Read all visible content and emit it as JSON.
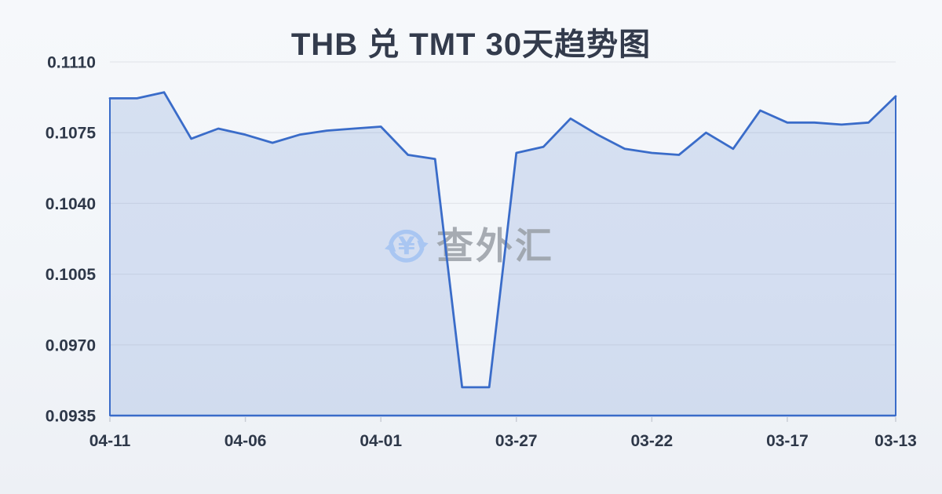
{
  "title": "THB 兑 TMT 30天趋势图",
  "watermark": {
    "text": "查外汇",
    "icon": "currency-refresh-icon"
  },
  "colors": {
    "background_top": "#f6f8fb",
    "background_bottom": "#edf0f5",
    "title_text": "#333b4c",
    "axis_label_text": "#2e3849",
    "watermark_text": "#999fa6",
    "watermark_icon": "#a9c6f2"
  },
  "chart_data": {
    "type": "area",
    "title": "THB 兑 TMT 30天趋势图",
    "x": [
      "04-11",
      "04-10",
      "04-09",
      "04-08",
      "04-07",
      "04-06",
      "04-05",
      "04-04",
      "04-03",
      "04-02",
      "04-01",
      "03-31",
      "03-30",
      "03-29",
      "03-28",
      "03-27",
      "03-26",
      "03-25",
      "03-24",
      "03-23",
      "03-22",
      "03-21",
      "03-20",
      "03-19",
      "03-18",
      "03-17",
      "03-16",
      "03-15",
      "03-14",
      "03-13"
    ],
    "values": [
      0.1092,
      0.1092,
      0.1095,
      0.1072,
      0.1077,
      0.1074,
      0.107,
      0.1074,
      0.1076,
      0.1077,
      0.1078,
      0.1064,
      0.1062,
      0.0949,
      0.0949,
      0.1065,
      0.1068,
      0.1082,
      0.1074,
      0.1067,
      0.1065,
      0.1064,
      0.1075,
      0.1067,
      0.1086,
      0.108,
      0.108,
      0.1079,
      0.108,
      0.1093
    ],
    "x_tick_labels": [
      "04-11",
      "04-06",
      "04-01",
      "03-27",
      "03-22",
      "03-17",
      "03-13"
    ],
    "x_tick_indices": [
      0,
      5,
      10,
      15,
      20,
      25,
      29
    ],
    "y_tick_labels": [
      "0.1110",
      "0.1075",
      "0.1040",
      "0.1005",
      "0.0970",
      "0.0935"
    ],
    "y_ticks": [
      0.111,
      0.1075,
      0.104,
      0.1005,
      0.097,
      0.0935
    ],
    "ylim": [
      0.0935,
      0.111
    ],
    "grid": true,
    "legend": "none",
    "colors": {
      "line": "#3a6cc9",
      "area_fill": "rgba(58,108,201,0.16)",
      "gridline": "#e3e6eb",
      "axis_tick": "#c9cdd5"
    }
  }
}
